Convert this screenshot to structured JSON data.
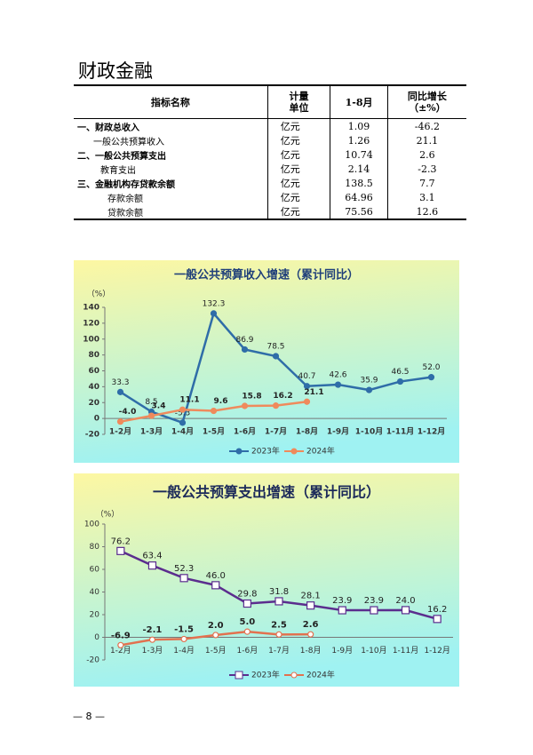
{
  "title": "财政金融",
  "table": {
    "header": [
      "指标名称",
      "计量\n单位",
      "1-8月",
      "同比增长\n（±%）"
    ],
    "rows": [
      [
        "一、财政总收入",
        "亿元",
        "1.09",
        "-46.2"
      ],
      [
        "一般公共预算收入",
        "亿元",
        "1.26",
        "21.1"
      ],
      [
        "二、一般公共预算支出",
        "亿元",
        "10.74",
        "2.6"
      ],
      [
        "教育支出",
        "亿元",
        "2.14",
        "-2.3"
      ],
      [
        "三、金融机构存贷款余额",
        "亿元",
        "138.5",
        "7.7"
      ],
      [
        "存款余额",
        "亿元",
        "64.96",
        "3.1"
      ],
      [
        "贷款余额",
        "亿元",
        "75.56",
        "12.6"
      ]
    ]
  },
  "chart_data": [
    {
      "type": "line",
      "title": "一般公共预算收入增速（累计同比）",
      "y_label": "（%）",
      "categories": [
        "1-2月",
        "1-3月",
        "1-4月",
        "1-5月",
        "1-6月",
        "1-7月",
        "1-8月",
        "1-9月",
        "1-10月",
        "1-11月",
        "1-12月"
      ],
      "series": [
        {
          "name": "2023年",
          "color": "#2f6da8",
          "marker": "circle",
          "values": [
            33.3,
            8.5,
            -5.3,
            132.3,
            86.9,
            78.5,
            40.7,
            42.6,
            35.9,
            46.5,
            52.0
          ],
          "value_labels": [
            "33.3",
            "8.5",
            "-5.3",
            "132.3",
            "86.9",
            "78.5",
            "40.7",
            "42.6",
            "35.9",
            "46.5",
            "52.0"
          ]
        },
        {
          "name": "2024年",
          "color": "#ef8a5c",
          "marker": "circle",
          "values": [
            -4.0,
            3.4,
            11.1,
            9.6,
            15.8,
            16.2,
            21.1,
            null,
            null,
            null,
            null
          ],
          "value_labels": [
            "-4.0",
            "3.4",
            "11.1",
            "9.6",
            "15.8",
            "16.2",
            "21.1",
            null,
            null,
            null,
            null
          ]
        }
      ],
      "ylim": [
        -20,
        140
      ],
      "yticks": [
        -20,
        0,
        20,
        40,
        60,
        80,
        100,
        120,
        140
      ],
      "legend": "bottom"
    },
    {
      "type": "line",
      "title": "一般公共预算支出增速（累计同比）",
      "y_label": "（%）",
      "categories": [
        "1-2月",
        "1-3月",
        "1-4月",
        "1-5月",
        "1-6月",
        "1-7月",
        "1-8月",
        "1-9月",
        "1-10月",
        "1-11月",
        "1-12月"
      ],
      "series": [
        {
          "name": "2023年",
          "color": "#5b2d8e",
          "marker": "square",
          "values": [
            76.2,
            63.4,
            52.3,
            46.0,
            29.8,
            31.8,
            28.1,
            23.9,
            23.9,
            24.0,
            16.2
          ],
          "value_labels": [
            "76.2",
            "63.4",
            "52.3",
            "46.0",
            "29.8",
            "31.8",
            "28.1",
            "23.9",
            "23.9",
            "24.0",
            "16.2"
          ]
        },
        {
          "name": "2024年",
          "color": "#e2714f",
          "marker": "circle",
          "values": [
            -6.9,
            -2.1,
            -1.5,
            2.0,
            5.0,
            2.5,
            2.6,
            null,
            null,
            null,
            null
          ],
          "value_labels": [
            "-6.9",
            "-2.1",
            "-1.5",
            "2.0",
            "5.0",
            "2.5",
            "2.6",
            null,
            null,
            null,
            null
          ]
        }
      ],
      "ylim": [
        -20,
        100
      ],
      "yticks": [
        -20,
        0,
        20,
        40,
        60,
        80,
        100
      ],
      "legend": "bottom"
    }
  ],
  "page_number": "— 8 —"
}
